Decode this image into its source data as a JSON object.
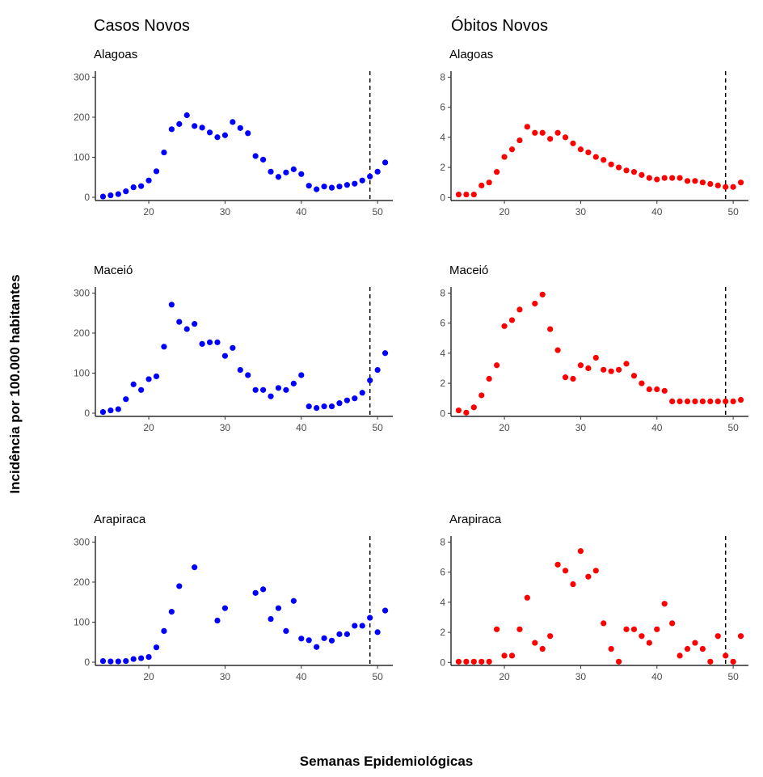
{
  "figure": {
    "ylabel": "Incidência por 100.000 habitantes",
    "xlabel": "Semanas Epidemiológicas",
    "columns": [
      {
        "title": "Casos Novos",
        "color": "#0000ff"
      },
      {
        "title": "Óbitos Novos",
        "color": "#ff0000"
      }
    ],
    "reference_line": {
      "x": 49,
      "style": "dashed",
      "color": "#000000"
    }
  },
  "chart_data": [
    {
      "type": "scatter",
      "column": "Casos Novos",
      "subtitle": "Alagoas",
      "xlim": [
        13,
        52
      ],
      "ylim": [
        -8,
        315
      ],
      "xticks": [
        20,
        30,
        40,
        50
      ],
      "yticks": [
        0,
        100,
        200,
        300
      ],
      "color": "#0000ff",
      "x": [
        14,
        15,
        16,
        17,
        18,
        19,
        20,
        21,
        22,
        23,
        24,
        25,
        26,
        27,
        28,
        29,
        30,
        31,
        32,
        33,
        34,
        35,
        36,
        37,
        38,
        39,
        40,
        41,
        42,
        43,
        44,
        45,
        46,
        47,
        48,
        49,
        50,
        51
      ],
      "y": [
        2,
        5,
        8,
        15,
        25,
        28,
        42,
        65,
        112,
        170,
        183,
        205,
        178,
        174,
        162,
        150,
        155,
        188,
        173,
        160,
        103,
        94,
        64,
        51,
        62,
        70,
        58,
        29,
        20,
        27,
        24,
        27,
        31,
        34,
        42,
        52,
        64,
        87
      ]
    },
    {
      "type": "scatter",
      "column": "Óbitos Novos",
      "subtitle": "Alagoas",
      "xlim": [
        13,
        52
      ],
      "ylim": [
        -0.2,
        8.4
      ],
      "xticks": [
        20,
        30,
        40,
        50
      ],
      "yticks": [
        0,
        2,
        4,
        6,
        8
      ],
      "color": "#ff0000",
      "x": [
        14,
        15,
        16,
        17,
        18,
        19,
        20,
        21,
        22,
        23,
        24,
        25,
        26,
        27,
        28,
        29,
        30,
        31,
        32,
        33,
        34,
        35,
        36,
        37,
        38,
        39,
        40,
        41,
        42,
        43,
        44,
        45,
        46,
        47,
        48,
        49,
        50,
        51
      ],
      "y": [
        0.2,
        0.2,
        0.2,
        0.8,
        1.0,
        1.7,
        2.7,
        3.2,
        3.8,
        4.7,
        4.3,
        4.3,
        3.9,
        4.3,
        4.0,
        3.6,
        3.2,
        3.0,
        2.7,
        2.5,
        2.2,
        2.0,
        1.8,
        1.7,
        1.5,
        1.3,
        1.2,
        1.3,
        1.3,
        1.3,
        1.1,
        1.1,
        1.0,
        0.9,
        0.8,
        0.7,
        0.7,
        1.0
      ]
    },
    {
      "type": "scatter",
      "column": "Casos Novos",
      "subtitle": "Maceió",
      "xlim": [
        13,
        52
      ],
      "ylim": [
        -8,
        315
      ],
      "xticks": [
        20,
        30,
        40,
        50
      ],
      "yticks": [
        0,
        100,
        200,
        300
      ],
      "color": "#0000ff",
      "x": [
        14,
        15,
        16,
        17,
        18,
        19,
        20,
        21,
        22,
        23,
        24,
        25,
        26,
        27,
        28,
        29,
        30,
        31,
        32,
        33,
        34,
        35,
        36,
        37,
        38,
        39,
        40,
        41,
        42,
        43,
        44,
        45,
        46,
        47,
        48,
        49,
        50,
        51
      ],
      "y": [
        3,
        7,
        10,
        35,
        72,
        58,
        85,
        92,
        166,
        271,
        228,
        210,
        223,
        173,
        177,
        177,
        143,
        163,
        108,
        95,
        58,
        58,
        42,
        63,
        58,
        74,
        95,
        17,
        13,
        17,
        17,
        25,
        32,
        37,
        51,
        82,
        108,
        150
      ]
    },
    {
      "type": "scatter",
      "column": "Óbitos Novos",
      "subtitle": "Maceió",
      "xlim": [
        13,
        52
      ],
      "ylim": [
        -0.2,
        8.4
      ],
      "xticks": [
        20,
        30,
        40,
        50
      ],
      "yticks": [
        0,
        2,
        4,
        6,
        8
      ],
      "color": "#ff0000",
      "x": [
        14,
        15,
        16,
        17,
        18,
        19,
        20,
        21,
        22,
        23,
        24,
        25,
        26,
        27,
        28,
        29,
        30,
        31,
        32,
        33,
        34,
        35,
        36,
        37,
        38,
        39,
        40,
        41,
        42,
        43,
        44,
        45,
        46,
        47,
        48,
        49,
        50,
        51
      ],
      "y": [
        0.2,
        0.05,
        0.4,
        1.2,
        2.3,
        3.2,
        5.8,
        6.2,
        6.9,
        null,
        7.3,
        7.9,
        5.6,
        4.2,
        2.4,
        2.3,
        3.2,
        3.0,
        3.7,
        2.9,
        2.8,
        2.9,
        3.3,
        2.5,
        2.0,
        1.6,
        1.6,
        1.5,
        0.8,
        0.8,
        0.8,
        0.8,
        0.8,
        0.8,
        0.8,
        0.8,
        0.8,
        0.9
      ]
    },
    {
      "type": "scatter",
      "column": "Casos Novos",
      "subtitle": "Arapiraca",
      "xlim": [
        13,
        52
      ],
      "ylim": [
        -8,
        315
      ],
      "xticks": [
        20,
        30,
        40,
        50
      ],
      "yticks": [
        0,
        100,
        200,
        300
      ],
      "color": "#0000ff",
      "x": [
        14,
        15,
        16,
        17,
        18,
        19,
        20,
        21,
        22,
        23,
        24,
        26,
        29,
        30,
        34,
        35,
        36,
        37,
        38,
        39,
        40,
        41,
        42,
        43,
        44,
        45,
        46,
        47,
        48,
        49,
        50,
        51
      ],
      "y": [
        3,
        2,
        2,
        3,
        8,
        10,
        13,
        37,
        78,
        126,
        190,
        237,
        104,
        135,
        173,
        182,
        108,
        135,
        78,
        153,
        59,
        55,
        38,
        60,
        54,
        70,
        70,
        91,
        91,
        111,
        75,
        129
      ]
    },
    {
      "type": "scatter",
      "column": "Óbitos Novos",
      "subtitle": "Arapiraca",
      "xlim": [
        13,
        52
      ],
      "ylim": [
        -0.2,
        8.4
      ],
      "xticks": [
        20,
        30,
        40,
        50
      ],
      "yticks": [
        0,
        2,
        4,
        6,
        8
      ],
      "color": "#ff0000",
      "x": [
        14,
        15,
        16,
        17,
        18,
        19,
        20,
        21,
        22,
        23,
        24,
        25,
        26,
        27,
        28,
        29,
        30,
        31,
        32,
        33,
        34,
        35,
        36,
        37,
        38,
        39,
        40,
        41,
        42,
        43,
        44,
        45,
        46,
        47,
        48,
        49,
        50,
        51
      ],
      "y": [
        0.05,
        0.05,
        0.05,
        0.05,
        0.05,
        2.2,
        0.45,
        0.45,
        2.2,
        4.3,
        1.3,
        0.9,
        1.75,
        6.5,
        6.1,
        5.2,
        7.4,
        5.7,
        6.1,
        2.6,
        0.9,
        0.05,
        2.2,
        2.2,
        1.75,
        1.3,
        2.2,
        3.9,
        2.6,
        0.45,
        0.9,
        1.3,
        0.9,
        0.05,
        1.75,
        0.45,
        0.05,
        1.75
      ]
    }
  ]
}
